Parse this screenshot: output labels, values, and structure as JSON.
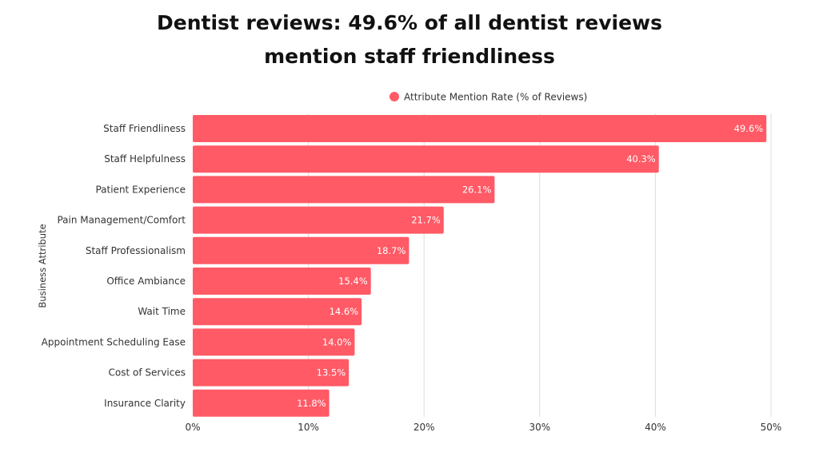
{
  "chart_data": {
    "type": "bar",
    "orientation": "horizontal",
    "title_lines": [
      "Dentist reviews: 49.6% of all dentist reviews",
      "mention staff friendliness"
    ],
    "ylabel": "Business Attribute",
    "xlabel": "",
    "legend": {
      "label": "Attribute Mention Rate (% of Reviews)",
      "position": "top-center"
    },
    "categories": [
      "Staff Friendliness",
      "Staff Helpfulness",
      "Patient Experience",
      "Pain Management/Comfort",
      "Staff Professionalism",
      "Office Ambiance",
      "Wait Time",
      "Appointment Scheduling Ease",
      "Cost of Services",
      "Insurance Clarity"
    ],
    "values": [
      49.6,
      40.3,
      26.1,
      21.7,
      18.7,
      15.4,
      14.6,
      14.0,
      13.5,
      11.8
    ],
    "value_labels": [
      "49.6%",
      "40.3%",
      "26.1%",
      "21.7%",
      "18.7%",
      "15.4%",
      "14.6%",
      "14.0%",
      "13.5%",
      "11.8%"
    ],
    "xlim": [
      0,
      50
    ],
    "x_ticks": [
      0,
      10,
      20,
      30,
      40,
      50
    ],
    "x_tick_labels": [
      "0%",
      "10%",
      "20%",
      "30%",
      "40%",
      "50%"
    ],
    "grid": true,
    "colors": {
      "bar": "#ff5a66",
      "grid": "#dddddd",
      "bar_label": "#ffffff",
      "text": "#333333"
    }
  }
}
